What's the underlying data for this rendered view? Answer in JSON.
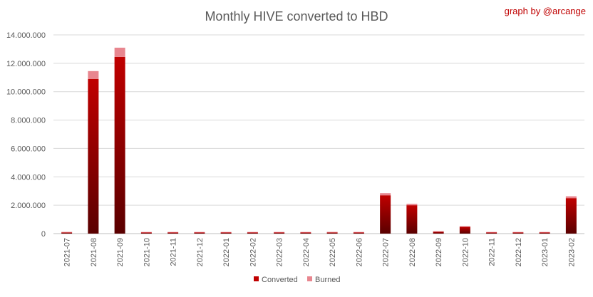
{
  "credit": "graph by @arcange",
  "colors": {
    "converted_top": "#c00000",
    "converted_bottom": "#5a0000",
    "burned": "#e8868f",
    "grid": "#d9d9d9",
    "text": "#595959"
  },
  "chart_data": {
    "type": "bar",
    "stacked": true,
    "title": "Monthly HIVE converted to HBD",
    "xlabel": "",
    "ylabel": "",
    "ylim": [
      0,
      14000000
    ],
    "yticks": [
      0,
      2000000,
      4000000,
      6000000,
      8000000,
      10000000,
      12000000,
      14000000
    ],
    "ytick_labels": [
      "0",
      "2.000.000",
      "4.000.000",
      "6.000.000",
      "8.000.000",
      "10.000.000",
      "12.000.000",
      "14.000.000"
    ],
    "grid": true,
    "legend_position": "bottom",
    "categories": [
      "2021-07",
      "2021-08",
      "2021-09",
      "2021-10",
      "2021-11",
      "2021-12",
      "2022-01",
      "2022-02",
      "2022-03",
      "2022-04",
      "2022-05",
      "2022-06",
      "2022-07",
      "2022-08",
      "2022-09",
      "2022-10",
      "2022-11",
      "2022-12",
      "2023-01",
      "2023-02"
    ],
    "series": [
      {
        "name": "Converted",
        "values": [
          80000,
          10900000,
          12450000,
          20000,
          20000,
          20000,
          20000,
          20000,
          20000,
          20000,
          80000,
          30000,
          2700000,
          2000000,
          130000,
          480000,
          20000,
          20000,
          20000,
          2500000
        ]
      },
      {
        "name": "Burned",
        "values": [
          5000,
          550000,
          650000,
          3000,
          3000,
          3000,
          3000,
          3000,
          3000,
          3000,
          5000,
          3000,
          150000,
          100000,
          10000,
          25000,
          3000,
          3000,
          3000,
          130000
        ]
      }
    ]
  }
}
